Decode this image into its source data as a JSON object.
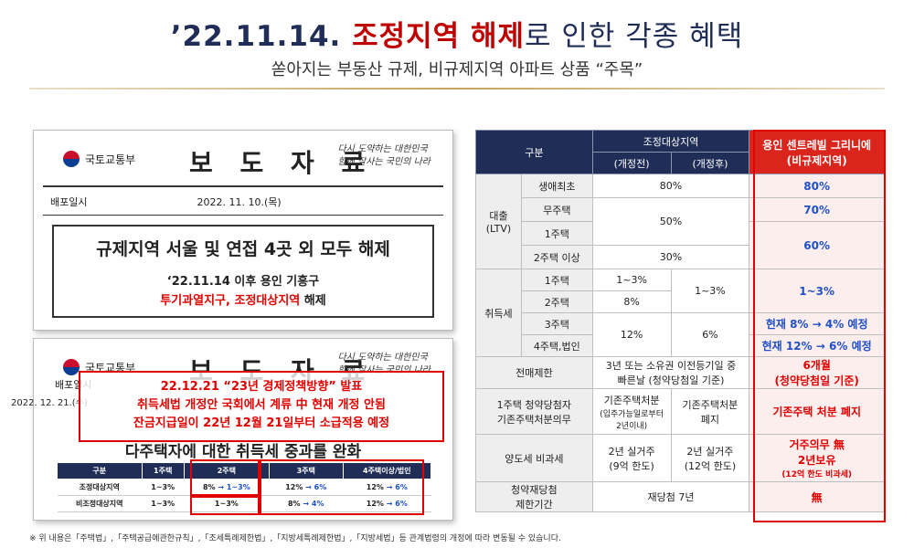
{
  "header": {
    "title_date": "’22.11.14.",
    "title_red": "조정지역 해제",
    "title_rest": "로 인한 각종 혜택",
    "subtitle": "쏟아지는 부동산 규제, 비규제지역 아파트 상품 “주목”"
  },
  "press1": {
    "ministry": "국토교통부",
    "title": "보 도 자 료",
    "slogan_line1": "다시 도약하는 대한민국",
    "slogan_line2": "함께 잘사는 국민의 나라",
    "date_label": "배포일시",
    "date_value": "2022. 11. 10.(목)",
    "headline": "규제지역 서울 및 연접 4곳 외 모두 해제",
    "sub1": "‘22.11.14 이후 용인 기흥구",
    "sub2_red": "투기과열지구, 조정대상지역",
    "sub2_rest": " 해제"
  },
  "press2": {
    "ministry": "국토교통부",
    "title": "보 도 자 료",
    "date_label": "배포일시",
    "date_value": "2022. 12. 21.(수)",
    "overlay_line1": "22.12.21 “23년 경제정책방향” 발표",
    "overlay_line2": "취득세법 개정안 국회에서 계류 中 현재 개정 안됨",
    "overlay_line3": "잔금지급일이 22년 12월 21일부터 소급적용 예정",
    "heading": "다주택자에 대한 취득세 중과를 완화",
    "table_headers": [
      "구분",
      "1주택",
      "2주택",
      "3주택",
      "4주택이상/법인"
    ],
    "rows": [
      {
        "label": "조정대상지역",
        "c1": "1~3%",
        "c2_a": "8%",
        "c2_b": "1~3%",
        "c3_a": "12%",
        "c3_b": "6%",
        "c4_a": "12%",
        "c4_b": "6%"
      },
      {
        "label": "비조정대상지역",
        "c1": "1~3%",
        "c2": "1~3%",
        "c3_a": "8%",
        "c3_b": "4%",
        "c4_a": "12%",
        "c4_b": "6%"
      }
    ],
    "arrow": "→"
  },
  "table": {
    "h_category": "구분",
    "h_adjust": "조정대상지역",
    "h_before": "(개정전)",
    "h_after": "(개정후)",
    "h_highlight_line1": "용인 센트레빌 그리니에",
    "h_highlight_line2": "(비규제지역)",
    "loan_label": "대출",
    "loan_label2": "(LTV)",
    "loan_rows": [
      "생애최초",
      "무주택",
      "1주택",
      "2주택 이상"
    ],
    "loan_v_first": "80%",
    "loan_v_none_one": "50%",
    "loan_v_two": "30%",
    "loan_h_first": "80%",
    "loan_h_none": "70%",
    "loan_h_one_two": "60%",
    "tax_label": "취득세",
    "tax_rows": [
      "1주택",
      "2주택",
      "3주택",
      "4주택,법인"
    ],
    "tax_v_1_before": "1~3%",
    "tax_v_2_before": "8%",
    "tax_v_12_after": "1~3%",
    "tax_v_34_before": "12%",
    "tax_v_34_after": "6%",
    "tax_h_12": "1~3%",
    "tax_h_3": "현재 8% → 4% 예정",
    "tax_h_4": "현재 12% → 6% 예정",
    "resale_label": "전매제한",
    "resale_value_line1": "3년 또는 소유권 이전등기일 중",
    "resale_value_line2": "빠른날 (청약당첨일 기준)",
    "resale_h_line1": "6개월",
    "resale_h_line2": "(청약당첨일 기준)",
    "one_house_label1": "1주택 청약당첨자",
    "one_house_label2": "기존주택처분의무",
    "one_house_before1": "기존주택처분",
    "one_house_before2": "(입주가능일로부터",
    "one_house_before3": "2년이내)",
    "one_house_after1": "기존주택처분",
    "one_house_after2": "폐지",
    "one_house_h": "기존주택 처분 폐지",
    "transfer_label": "양도세 비과세",
    "transfer_before1": "2년 실거주",
    "transfer_before2": "(9억 한도)",
    "transfer_after1": "2년 실거주",
    "transfer_after2": "(12억 한도)",
    "transfer_h1": "거주의무 無",
    "transfer_h2": "2년보유",
    "transfer_h3": "(12억 한도 비과세)",
    "rewin_label1": "청약재당첨",
    "rewin_label2": "제한기간",
    "rewin_value": "재당첨 7년",
    "rewin_h": "無"
  },
  "footnote": "※ 위 내용은「주택법」,「주택공급에관한규칙」,「조세특례제한법」,「지방세특례제한법」,「지방세법」등 관계법령의 개정에 따라 변동될 수 있습니다.",
  "colors": {
    "navy": "#1f2d57",
    "red": "#d9251c",
    "blue": "#1f50c8"
  }
}
